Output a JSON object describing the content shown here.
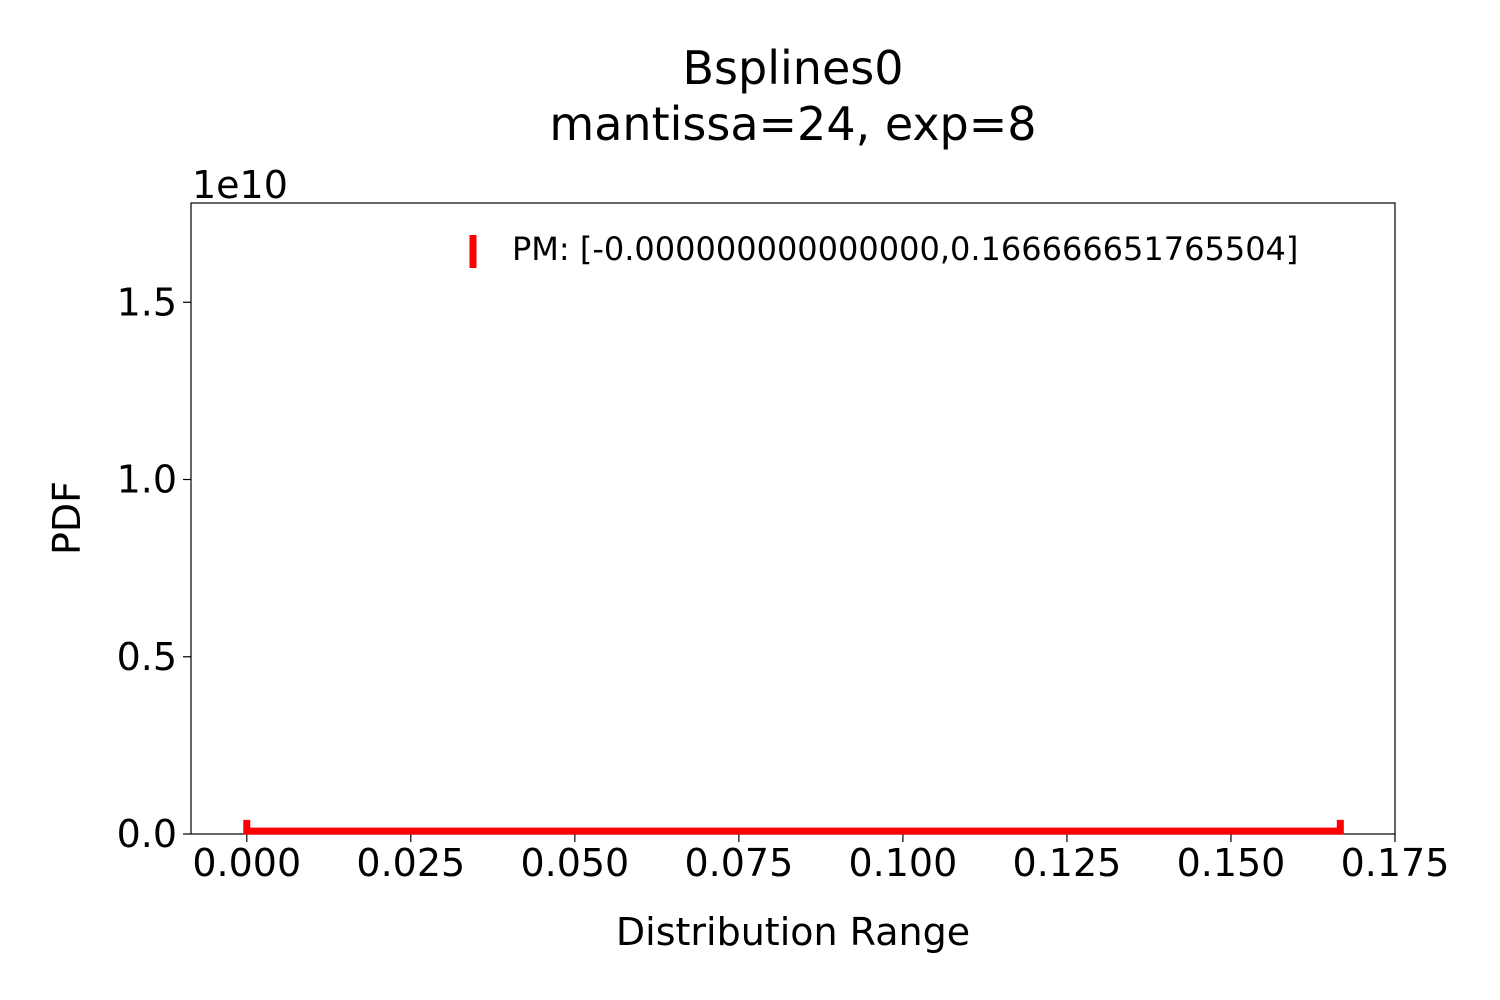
{
  "chart_data": {
    "type": "line",
    "title": "Bsplines0",
    "subtitle": "mantissa=24, exp=8",
    "xlabel": "Distribution Range",
    "ylabel": "PDF",
    "y_offset_label": "1e10",
    "xlim": [
      -0.0085,
      0.175
    ],
    "ylim": [
      0,
      1.78
    ],
    "x_ticks": [
      0.0,
      0.025,
      0.05,
      0.075,
      0.1,
      0.125,
      0.15,
      0.175
    ],
    "x_tick_labels": [
      "0.000",
      "0.025",
      "0.050",
      "0.075",
      "0.100",
      "0.125",
      "0.150",
      "0.175"
    ],
    "y_ticks": [
      0.0,
      0.5,
      1.0,
      1.5
    ],
    "y_tick_labels": [
      "0.0",
      "0.5",
      "1.0",
      "1.5"
    ],
    "grid": false,
    "legend_position": "top-right",
    "series": [
      {
        "name": "PM: [-0.000000000000000,0.166666651765504]",
        "color": "#ff0000",
        "x": [
          0.0,
          0.0,
          0.166666651765504,
          0.166666651765504
        ],
        "y": [
          0.04,
          0.008,
          0.008,
          0.04
        ]
      }
    ]
  }
}
